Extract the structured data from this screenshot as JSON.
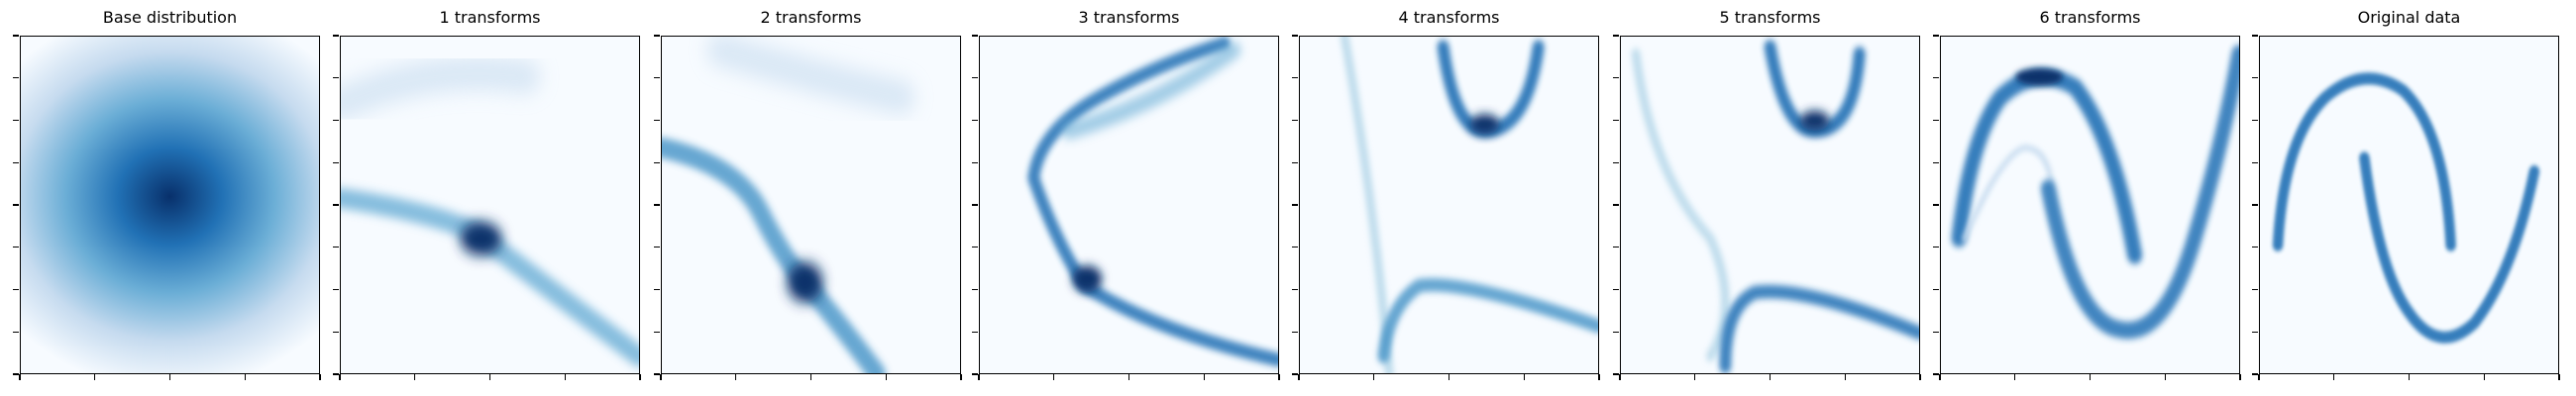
{
  "chart_data": [
    {
      "type": "heatmap",
      "title": "Base distribution",
      "colormap": "Blues",
      "shape": "gaussian-blob",
      "grid": false
    },
    {
      "type": "heatmap",
      "title": "1 transforms",
      "colormap": "Blues",
      "grid": false
    },
    {
      "type": "heatmap",
      "title": "2 transforms",
      "colormap": "Blues",
      "grid": false
    },
    {
      "type": "heatmap",
      "title": "3 transforms",
      "colormap": "Blues",
      "grid": false
    },
    {
      "type": "heatmap",
      "title": "4 transforms",
      "colormap": "Blues",
      "grid": false
    },
    {
      "type": "heatmap",
      "title": "5 transforms",
      "colormap": "Blues",
      "grid": false
    },
    {
      "type": "heatmap",
      "title": "6 transforms",
      "colormap": "Blues",
      "grid": false
    },
    {
      "type": "heatmap",
      "title": "Original data",
      "colormap": "Blues",
      "shape": "two-moons",
      "grid": false
    }
  ],
  "colors": {
    "background": "#f7fbff",
    "light": "#c6dbef",
    "mid": "#4292c6",
    "dark": "#08306b"
  }
}
